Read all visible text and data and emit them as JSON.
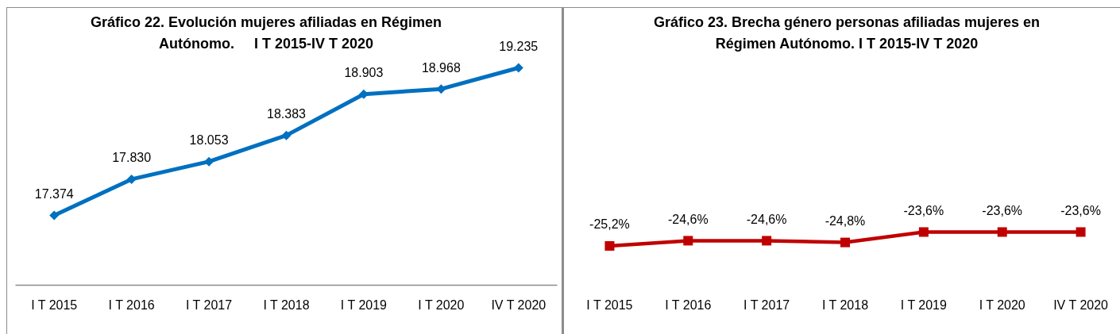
{
  "chart_data": [
    {
      "type": "line",
      "title": "Gráfico 22. Evolución mujeres afiliadas en Régimen Autónomo.     I T 2015-IV T 2020",
      "categories": [
        "I T 2015",
        "I T 2016",
        "I T 2017",
        "I T 2018",
        "I T 2019",
        "I T 2020",
        "IV T 2020"
      ],
      "series": [
        {
          "color": "#0070c0",
          "values": [
            17374,
            17830,
            18053,
            18383,
            18903,
            18968,
            19235
          ],
          "value_labels": [
            "17.374",
            "17.830",
            "18.053",
            "18.383",
            "18.903",
            "18.968",
            "19.235"
          ]
        }
      ],
      "marker": "diamond"
    },
    {
      "type": "line",
      "title": "Gráfico 23. Brecha género personas afiliadas mujeres en Régimen Autónomo. I T 2015-IV T 2020",
      "categories": [
        "I T 2015",
        "I T 2016",
        "I T 2017",
        "I T 2018",
        "I T 2019",
        "I T 2020",
        "IV T 2020"
      ],
      "series": [
        {
          "color": "#c00000",
          "values": [
            -25.2,
            -24.6,
            -24.6,
            -24.8,
            -23.6,
            -23.6,
            -23.6
          ],
          "value_labels": [
            "-25,2%",
            "-24,6%",
            "-24,6%",
            "-24,8%",
            "-23,6%",
            "-23,6%",
            "-23,6%"
          ]
        }
      ],
      "marker": "square"
    }
  ]
}
